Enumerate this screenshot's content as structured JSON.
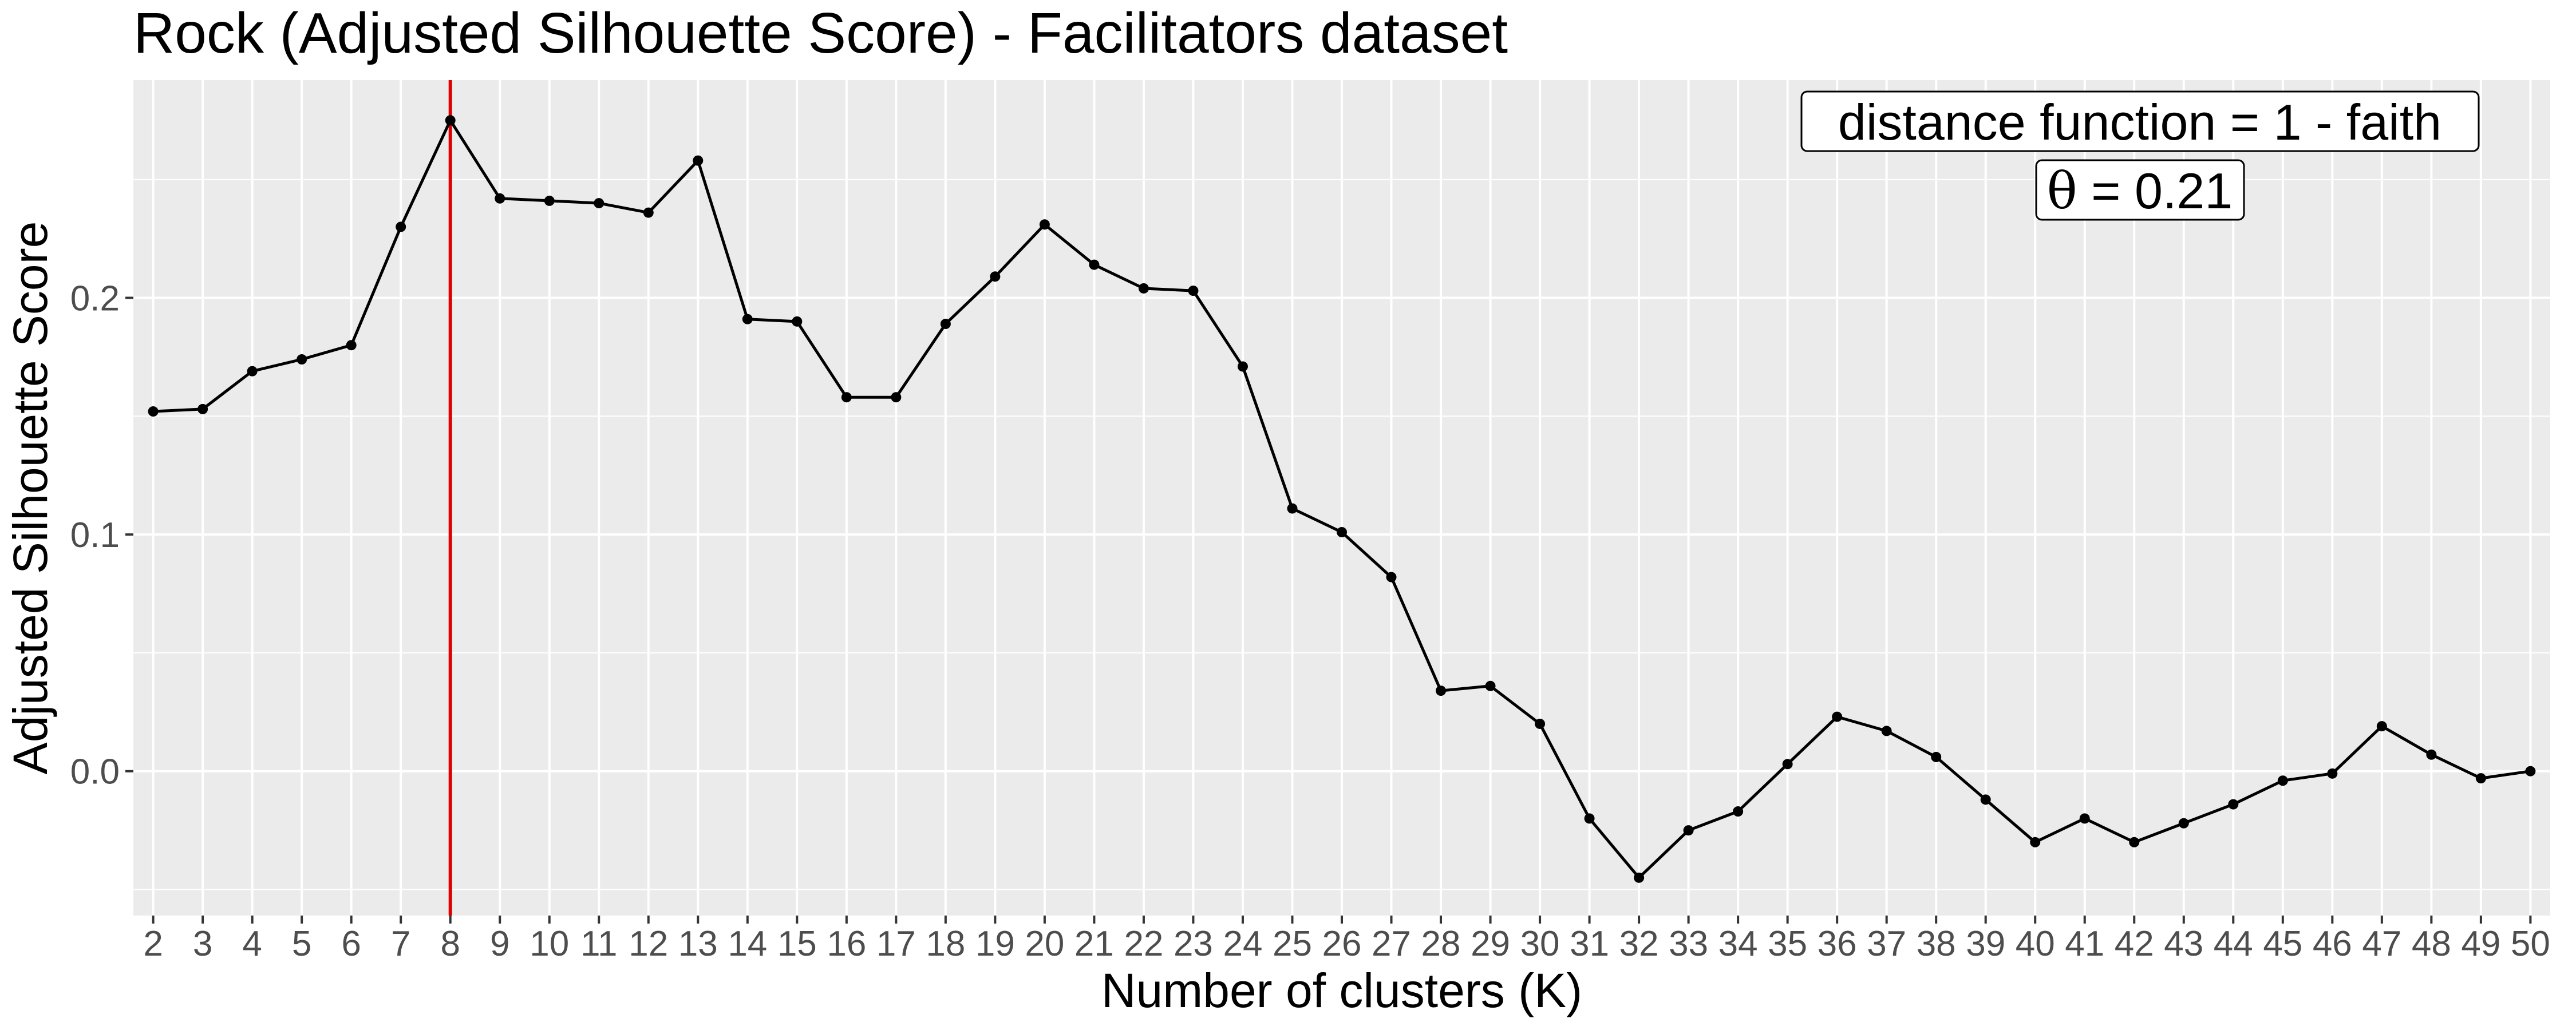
{
  "chart_data": {
    "type": "line",
    "title": "Rock (Adjusted Silhouette Score) - Facilitators dataset",
    "xlabel": "Number of clusters (K)",
    "ylabel": "Adjusted Silhouette Score",
    "x": [
      2,
      3,
      4,
      5,
      6,
      7,
      8,
      9,
      10,
      11,
      12,
      13,
      14,
      15,
      16,
      17,
      18,
      19,
      20,
      21,
      22,
      23,
      24,
      25,
      26,
      27,
      28,
      29,
      30,
      31,
      32,
      33,
      34,
      35,
      36,
      37,
      38,
      39,
      40,
      41,
      42,
      43,
      44,
      45,
      46,
      47,
      48,
      49,
      50
    ],
    "x_tick_labels": [
      "2",
      "3",
      "4",
      "5",
      "6",
      "7",
      "8",
      "9",
      "10",
      "11",
      "12",
      "13",
      "14",
      "15",
      "16",
      "17",
      "18",
      "19",
      "20",
      "21",
      "22",
      "23",
      "24",
      "25",
      "26",
      "27",
      "28",
      "29",
      "30",
      "31",
      "32",
      "33",
      "34",
      "35",
      "36",
      "37",
      "38",
      "39",
      "40",
      "41",
      "42",
      "43",
      "44",
      "45",
      "46",
      "47",
      "48",
      "49",
      "50"
    ],
    "series": [
      {
        "values": [
          0.152,
          0.153,
          0.169,
          0.174,
          0.18,
          0.23,
          0.275,
          0.242,
          0.241,
          0.24,
          0.236,
          0.258,
          0.191,
          0.19,
          0.158,
          0.158,
          0.189,
          0.209,
          0.231,
          0.214,
          0.204,
          0.203,
          0.171,
          0.111,
          0.101,
          0.082,
          0.034,
          0.036,
          0.02,
          -0.02,
          -0.045,
          -0.025,
          -0.017,
          0.003,
          0.023,
          0.017,
          0.006,
          -0.012,
          -0.03,
          -0.02,
          -0.03,
          -0.022,
          -0.014,
          -0.004,
          -0.001,
          0.019,
          0.007,
          -0.003,
          0.0
        ],
        "color": "#000000"
      }
    ],
    "y_ticks": [
      0.0,
      0.1,
      0.2
    ],
    "y_tick_labels": [
      "0.0",
      "0.1",
      "0.2"
    ],
    "xlim": [
      1.6,
      50.4
    ],
    "ylim": [
      -0.061,
      0.292
    ],
    "grid": true,
    "reference_line": {
      "x": 8,
      "color": "#e00000"
    },
    "annotations": {
      "distance_label": "distance function = 1 -  faith",
      "theta_symbol": "θ",
      "theta_equals": " = ",
      "theta_value": "0.21"
    },
    "colors": {
      "panel_background": "#ebebeb",
      "grid": "#ffffff",
      "line": "#000000",
      "reference_line": "#e00000"
    }
  }
}
